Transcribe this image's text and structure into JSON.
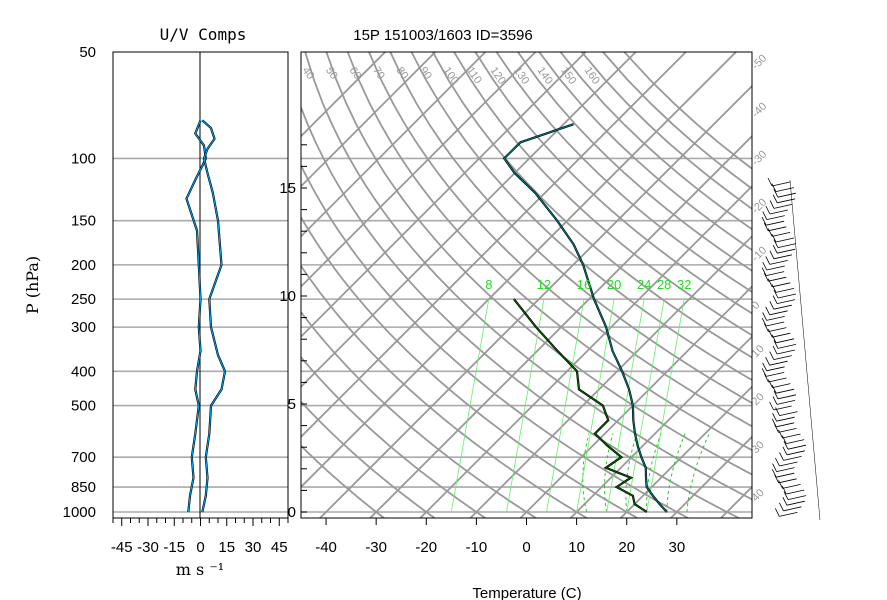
{
  "chart_data": [
    {
      "type": "line",
      "title": "U/V Comps",
      "xlabel": "m s ⁻¹",
      "ylabel": "P (hPa)",
      "xlim": [
        -50,
        50
      ],
      "x_ticks": [
        "-45",
        "-30",
        "-15",
        "0",
        "15",
        "30",
        "45"
      ],
      "y_ticks": [
        "50",
        "100",
        "150",
        "200",
        "250",
        "300",
        "400",
        "500",
        "700",
        "850",
        "1000"
      ],
      "y_scale": "log",
      "grid": true,
      "series": [
        {
          "color": "#00aaff",
          "points": [
            [
              1000,
              -7
            ],
            [
              900,
              -6
            ],
            [
              800,
              -4
            ],
            [
              700,
              -5
            ],
            [
              600,
              -3
            ],
            [
              500,
              -1
            ],
            [
              450,
              -3
            ],
            [
              400,
              -2
            ],
            [
              350,
              0
            ],
            [
              300,
              -1
            ],
            [
              250,
              0
            ],
            [
              200,
              -1
            ],
            [
              160,
              -2
            ],
            [
              130,
              -8
            ],
            [
              115,
              -3
            ],
            [
              105,
              1
            ],
            [
              100,
              3
            ],
            [
              92,
              2
            ],
            [
              85,
              -3
            ],
            [
              78,
              0
            ]
          ]
        },
        {
          "color": "#00aaff",
          "points": [
            [
              1000,
              1
            ],
            [
              900,
              3
            ],
            [
              800,
              4
            ],
            [
              700,
              3
            ],
            [
              600,
              5
            ],
            [
              500,
              6
            ],
            [
              450,
              12
            ],
            [
              400,
              14
            ],
            [
              360,
              10
            ],
            [
              300,
              6
            ],
            [
              250,
              5
            ],
            [
              200,
              12
            ],
            [
              150,
              10
            ],
            [
              125,
              7
            ],
            [
              110,
              4
            ],
            [
              100,
              2
            ],
            [
              94,
              4
            ],
            [
              88,
              8
            ],
            [
              82,
              6
            ],
            [
              78,
              1
            ]
          ]
        }
      ]
    },
    {
      "type": "line",
      "title": "15P 151003/1603 ID=3596",
      "xlabel": "Temperature (C)",
      "xlim": [
        -45,
        45
      ],
      "x_ticks": [
        "-40",
        "-30",
        "-20",
        "-10",
        "0",
        "10",
        "20",
        "30"
      ],
      "height_ticks": [
        "0",
        "5",
        "10",
        "15"
      ],
      "mixing_ratio_labels": [
        "8",
        "12",
        "16",
        "20",
        "24",
        "28",
        "32"
      ],
      "dry_adiabat_labels": [
        "40",
        "50",
        "60",
        "70",
        "80",
        "90",
        "100",
        "110",
        "120",
        "130",
        "140",
        "150",
        "160"
      ],
      "isotherm_labels": [
        "-50",
        "-40",
        "-30",
        "-20",
        "-10",
        "0",
        "10",
        "20",
        "30",
        "40"
      ],
      "series": [
        {
          "name_hidden": "temperature",
          "color": "#008080",
          "points": [
            [
              1000,
              28
            ],
            [
              950,
              25
            ],
            [
              900,
              22
            ],
            [
              850,
              19
            ],
            [
              800,
              17
            ],
            [
              750,
              15
            ],
            [
              700,
              12
            ],
            [
              650,
              9
            ],
            [
              600,
              6
            ],
            [
              550,
              3
            ],
            [
              500,
              0
            ],
            [
              450,
              -4
            ],
            [
              400,
              -9
            ],
            [
              350,
              -15
            ],
            [
              300,
              -21
            ],
            [
              250,
              -29
            ],
            [
              200,
              -38
            ],
            [
              175,
              -44
            ],
            [
              150,
              -52
            ],
            [
              125,
              -62
            ],
            [
              110,
              -70
            ],
            [
              100,
              -75
            ],
            [
              90,
              -75
            ],
            [
              80,
              -68
            ]
          ]
        },
        {
          "name_hidden": "dewpoint",
          "color": "#006600",
          "points": [
            [
              1000,
              24
            ],
            [
              950,
              20
            ],
            [
              900,
              18
            ],
            [
              850,
              13
            ],
            [
              800,
              14
            ],
            [
              750,
              7
            ],
            [
              700,
              8
            ],
            [
              650,
              3
            ],
            [
              600,
              -2
            ],
            [
              550,
              -2
            ],
            [
              500,
              -6
            ],
            [
              450,
              -14
            ],
            [
              400,
              -18
            ],
            [
              350,
              -26
            ],
            [
              300,
              -35
            ],
            [
              250,
              -45
            ]
          ]
        }
      ],
      "wind_barbs_right": true
    }
  ]
}
